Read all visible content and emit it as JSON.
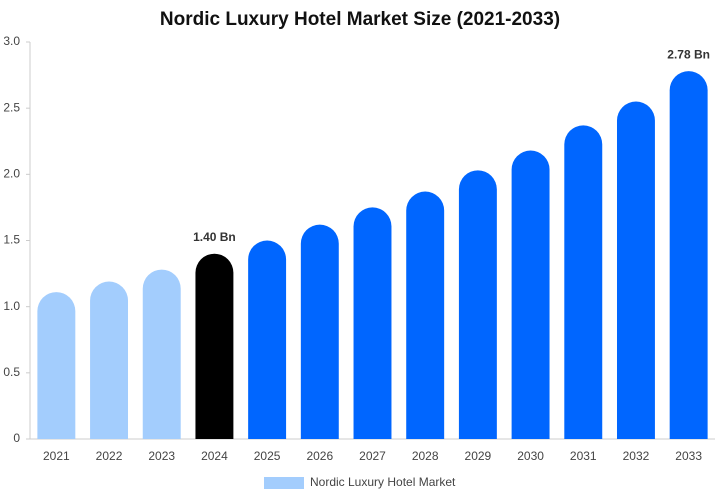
{
  "chart_data": {
    "type": "bar",
    "title": "Nordic Luxury Hotel Market Size (2021-2033)",
    "categories": [
      "2021",
      "2022",
      "2023",
      "2024",
      "2025",
      "2026",
      "2027",
      "2028",
      "2029",
      "2030",
      "2031",
      "2032",
      "2033"
    ],
    "series": [
      {
        "name": "Nordic Luxury Hotel Market",
        "color": "#a3cdfd",
        "colors": [
          "#a3cdfd",
          "#a3cdfd",
          "#a3cdfd",
          "#000000",
          "#0066ff",
          "#0066ff",
          "#0066ff",
          "#0066ff",
          "#0066ff",
          "#0066ff",
          "#0066ff",
          "#0066ff",
          "#0066ff"
        ],
        "values": [
          1.11,
          1.19,
          1.28,
          1.4,
          1.5,
          1.62,
          1.75,
          1.87,
          2.03,
          2.18,
          2.37,
          2.55,
          2.78
        ],
        "value_labels": [
          null,
          null,
          null,
          "1.40 Bn",
          null,
          null,
          null,
          null,
          null,
          null,
          null,
          null,
          "2.78 Bn"
        ]
      }
    ],
    "ylim": [
      0,
      3
    ],
    "yticks": [
      0,
      0.5,
      {
        "value": 1,
        "label": "1.0"
      },
      1.5,
      {
        "value": 2,
        "label": "2.0"
      },
      2.5,
      {
        "value": 3,
        "label": "3.0"
      }
    ],
    "grid": false,
    "legend": "bottom"
  }
}
